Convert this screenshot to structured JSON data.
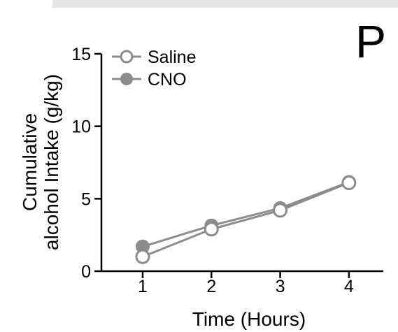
{
  "panel_letter": "P",
  "chart_data": {
    "type": "line",
    "xlabel": "Time (Hours)",
    "ylabel_lines": [
      "Cumulative",
      "alcohol Intake (g/kg)"
    ],
    "x": [
      1,
      2,
      3,
      4
    ],
    "xlim": [
      0.4,
      4.5
    ],
    "ylim": [
      0,
      15
    ],
    "xticks": [
      1,
      2,
      3,
      4
    ],
    "yticks": [
      0,
      5,
      10,
      15
    ],
    "grid": false,
    "legend_position": "top-left",
    "series": [
      {
        "name": "Saline",
        "values": [
          1.0,
          2.9,
          4.2,
          6.1
        ],
        "errors": [
          0.2,
          0.3,
          0.3,
          0.3
        ],
        "marker": "open-circle",
        "color": "#8c8c8c"
      },
      {
        "name": "CNO",
        "values": [
          1.7,
          3.15,
          4.35,
          6.15
        ],
        "errors": [
          0.2,
          0.3,
          0.3,
          0.3
        ],
        "marker": "filled-circle",
        "color": "#8c8c8c"
      }
    ]
  }
}
